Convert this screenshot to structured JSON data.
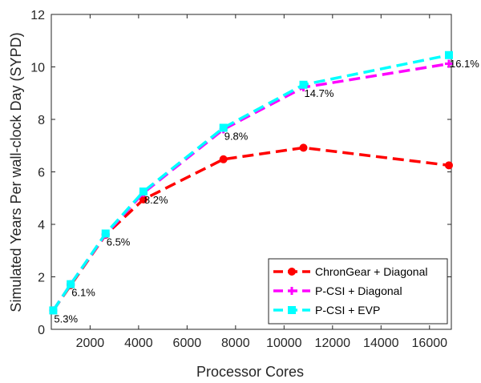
{
  "chart_data": {
    "type": "line",
    "xlabel": "Processor Cores",
    "ylabel": "Simulated Years Per wall-clock Day (SYPD)",
    "xlim": [
      400,
      16900
    ],
    "ylim": [
      0,
      12
    ],
    "xticks": [
      2000,
      4000,
      6000,
      8000,
      10000,
      12000,
      14000,
      16000
    ],
    "yticks": [
      0,
      2,
      4,
      6,
      8,
      10,
      12
    ],
    "grid": false,
    "legend_position": "bottom-right",
    "x": [
      480,
      1200,
      2640,
      4200,
      7500,
      10800,
      16800
    ],
    "series": [
      {
        "name": "ChronGear + Diagonal",
        "color": "#ff0000",
        "marker": "circle",
        "values": [
          0.72,
          1.68,
          3.6,
          4.95,
          6.48,
          6.92,
          6.25
        ]
      },
      {
        "name": "P-CSI + Diagonal",
        "color": "#ff00ff",
        "marker": "plus",
        "values": [
          0.72,
          1.72,
          3.62,
          5.2,
          7.62,
          9.22,
          10.12
        ]
      },
      {
        "name": "P-CSI + EVP",
        "color": "#00ffff",
        "marker": "square",
        "values": [
          0.72,
          1.72,
          3.65,
          5.25,
          7.68,
          9.32,
          10.45
        ]
      }
    ],
    "annotations": [
      "5.3%",
      "6.1%",
      "6.5%",
      "8.2%",
      "9.8%",
      "14.7%",
      "16.1%"
    ]
  }
}
